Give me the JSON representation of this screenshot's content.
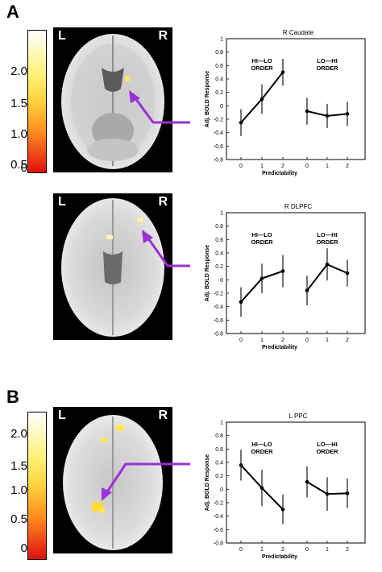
{
  "panel_labels": {
    "a": "A",
    "b": "B"
  },
  "colorbar": {
    "ticks": [
      "2.0",
      "1.5",
      "1.0",
      "0.5",
      "0"
    ],
    "colors": {
      "top": "#ffffff",
      "mid_high": "#fff27a",
      "mid": "#ffd23a",
      "mid_low": "#ff8a1e",
      "low": "#e01010"
    }
  },
  "brain_labels": {
    "left": "L",
    "right": "R"
  },
  "arrow_color": "#9b30d8",
  "charts": [
    {
      "title": "R Caudate",
      "ylabel": "Adj. BOLD Response",
      "xlabel": "Predictability",
      "y_ticks": [
        "1",
        "0.8",
        "0.6",
        "0.4",
        "0.2",
        "0",
        "-0.2",
        "-0.4",
        "-0.6",
        "-0.8"
      ],
      "x_ticks": [
        "0",
        "1",
        "2",
        "0",
        "1",
        "2"
      ],
      "group_labels": [
        [
          "HI—LO",
          "ORDER"
        ],
        [
          "LO—HI",
          "ORDER"
        ]
      ]
    },
    {
      "title": "R DLPFC",
      "ylabel": "Adj. BOLD Response",
      "xlabel": "Predictability",
      "y_ticks": [
        "1",
        "0.8",
        "0.6",
        "0.4",
        "0.2",
        "0",
        "-0.2",
        "-0.4",
        "-0.6",
        "-0.8"
      ],
      "x_ticks": [
        "0",
        "1",
        "2",
        "0",
        "1",
        "2"
      ],
      "group_labels": [
        [
          "HI—LO",
          "ORDER"
        ],
        [
          "LO—HI",
          "ORDER"
        ]
      ]
    },
    {
      "title": "L PPC",
      "ylabel": "Adj. BOLD Response",
      "xlabel": "Predictability",
      "y_ticks": [
        "1",
        "0.8",
        "0.6",
        "0.4",
        "0.2",
        "0",
        "-0.2",
        "-0.4",
        "-0.6",
        "-0.8"
      ],
      "x_ticks": [
        "0",
        "1",
        "2",
        "0",
        "1",
        "2"
      ],
      "group_labels": [
        [
          "HI—LO",
          "ORDER"
        ],
        [
          "LO—HI",
          "ORDER"
        ]
      ]
    }
  ],
  "chart_data": [
    {
      "type": "line",
      "title": "R Caudate",
      "xlabel": "Predictability",
      "ylabel": "Adj. BOLD Response",
      "ylim": [
        -0.8,
        1
      ],
      "series": [
        {
          "name": "HI—LO ORDER",
          "x": [
            0,
            1,
            2
          ],
          "values": [
            -0.25,
            0.1,
            0.5
          ],
          "err": [
            0.2,
            0.22,
            0.2
          ]
        },
        {
          "name": "LO—HI ORDER",
          "x": [
            0,
            1,
            2
          ],
          "values": [
            -0.08,
            -0.15,
            -0.12
          ],
          "err": [
            0.2,
            0.18,
            0.18
          ]
        }
      ]
    },
    {
      "type": "line",
      "title": "R DLPFC",
      "xlabel": "Predictability",
      "ylabel": "Adj. BOLD Response",
      "ylim": [
        -0.8,
        1
      ],
      "series": [
        {
          "name": "HI—LO ORDER",
          "x": [
            0,
            1,
            2
          ],
          "values": [
            -0.33,
            0.02,
            0.13
          ],
          "err": [
            0.22,
            0.22,
            0.24
          ]
        },
        {
          "name": "LO—HI ORDER",
          "x": [
            0,
            1,
            2
          ],
          "values": [
            -0.16,
            0.23,
            0.1
          ],
          "err": [
            0.22,
            0.24,
            0.2
          ]
        }
      ]
    },
    {
      "type": "line",
      "title": "L PPC",
      "xlabel": "Predictability",
      "ylabel": "Adj. BOLD Response",
      "ylim": [
        -0.8,
        1
      ],
      "series": [
        {
          "name": "HI—LO ORDER",
          "x": [
            0,
            1,
            2
          ],
          "values": [
            0.36,
            0.02,
            -0.3
          ],
          "err": [
            0.23,
            0.27,
            0.22
          ]
        },
        {
          "name": "LO—HI ORDER",
          "x": [
            0,
            1,
            2
          ],
          "values": [
            0.11,
            -0.07,
            -0.06
          ],
          "err": [
            0.23,
            0.25,
            0.22
          ]
        }
      ]
    }
  ]
}
